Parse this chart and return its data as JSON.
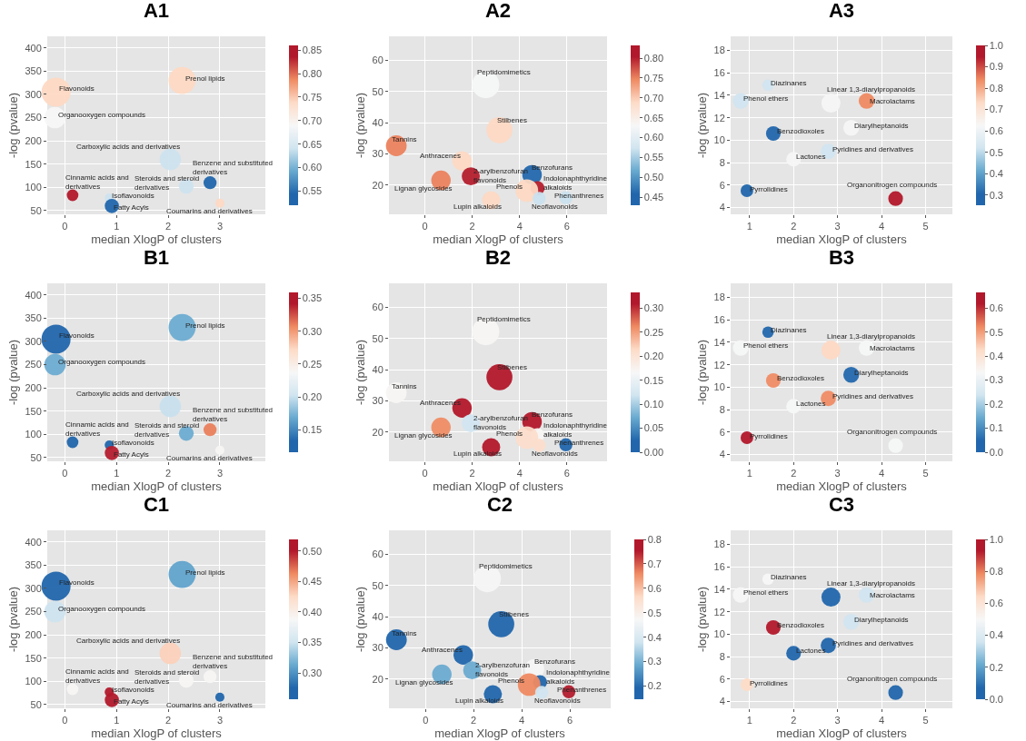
{
  "chart_data": [
    {
      "type": "bubble",
      "title": "A1",
      "xlabel": "median XlogP of clusters",
      "ylabel": "-log (pvalue)",
      "xlim": [
        -0.34,
        3.88
      ],
      "xticks": [
        0,
        1,
        2,
        3
      ],
      "ylim": [
        42,
        425
      ],
      "yticks": [
        50,
        100,
        150,
        200,
        250,
        300,
        350,
        400
      ],
      "grid": true,
      "x": [
        -0.17,
        2.27,
        -0.19,
        2.04,
        2.81,
        2.35,
        0.15,
        0.86,
        0.91,
        3.0
      ],
      "values": [
        305,
        330,
        250,
        160,
        110,
        102,
        83,
        77,
        60,
        66
      ],
      "sizes": [
        1,
        0.87,
        0.54,
        0.54,
        0.2,
        0.26,
        0.16,
        0.1,
        0.24,
        0.1
      ],
      "cvalues": [
        0.74,
        0.74,
        0.69,
        0.64,
        0.54,
        0.64,
        0.84,
        0.64,
        0.54,
        0.74
      ],
      "clim": [
        0.52,
        0.86
      ],
      "cticks": [
        0.55,
        {
          "value": 0.6,
          "label": "0.60"
        },
        0.65,
        {
          "value": 0.7,
          "label": "0.70"
        },
        0.75,
        {
          "value": 0.8,
          "label": "0.80"
        },
        0.85
      ],
      "annotations": [
        {
          "text": "Flavonoids",
          "x": -0.17,
          "y": 305
        },
        {
          "text": "Prenol lipids",
          "x": 2.27,
          "y": 330
        },
        {
          "text": "Organooxygen compounds",
          "x": -0.19,
          "y": 250
        },
        {
          "text": "Carboxylic acids and derivatives",
          "x": 2.04,
          "y": 160
        },
        {
          "text": "Benzene and substituted\nderivatives",
          "x": 2.81,
          "y": 110
        },
        {
          "text": "Steroids and steroid\nderivatives",
          "x": 2.35,
          "y": 102
        },
        {
          "text": "Cinnamic acids and\nderivatives",
          "x": 0.15,
          "y": 83
        },
        {
          "text": "Isoflavonoids",
          "x": 0.86,
          "y": 77
        },
        {
          "text": "Fatty Acyls",
          "x": 0.91,
          "y": 60
        },
        {
          "text": "Coumarins and derivatives",
          "x": 3.0,
          "y": 66
        }
      ]
    },
    {
      "type": "bubble",
      "title": "A2",
      "xlabel": "median XlogP of clusters",
      "ylabel": "-log (pvalue)",
      "xlim": [
        -1.52,
        7.7
      ],
      "xticks": [
        0,
        2,
        4,
        6
      ],
      "ylim": [
        10.6,
        67.7
      ],
      "yticks": [
        20,
        30,
        40,
        50,
        60
      ],
      "grid": true,
      "x": [
        2.57,
        3.15,
        -1.21,
        1.57,
        0.68,
        1.94,
        2.8,
        4.53,
        4.76,
        4.31,
        4.83,
        5.96
      ],
      "values": [
        52.2,
        37.6,
        32.6,
        27.7,
        21.5,
        22.8,
        15.1,
        23.3,
        19.0,
        18.2,
        15.7,
        15.9
      ],
      "sizes": [
        1,
        0.91,
        0.58,
        0.51,
        0.51,
        0.44,
        0.44,
        0.51,
        0.27,
        0.69,
        0.23,
        0.23
      ],
      "cvalues": [
        0.63,
        0.69,
        0.75,
        0.69,
        0.75,
        0.8,
        0.69,
        0.46,
        0.8,
        0.69,
        0.57,
        0.57
      ],
      "clim": [
        0.43,
        0.832
      ],
      "cticks": [
        0.45,
        {
          "value": 0.5,
          "label": "0.50"
        },
        0.55,
        {
          "value": 0.6,
          "label": "0.60"
        },
        0.65,
        {
          "value": 0.7,
          "label": "0.70"
        },
        0.75,
        {
          "value": 0.8,
          "label": "0.80"
        }
      ],
      "annotations": [
        {
          "text": "Peptidomimetics",
          "x": 2.57,
          "y": 52.2
        },
        {
          "text": "Stilbenes",
          "x": 3.15,
          "y": 37.6
        },
        {
          "text": "Tannins",
          "x": -1.21,
          "y": 32.6
        },
        {
          "text": "Anthracenes",
          "x": 1.57,
          "y": 27.7
        },
        {
          "text": "Lignan glycosides",
          "x": 0.68,
          "y": 21.5
        },
        {
          "text": "2-arylbenzofuran\nflavonoids",
          "x": 1.94,
          "y": 22.8
        },
        {
          "text": "Lupin alkaloids",
          "x": 2.8,
          "y": 15.1
        },
        {
          "text": "Benzofurans",
          "x": 4.53,
          "y": 23.3
        },
        {
          "text": "Indolonaphthyridine\nalkaloids",
          "x": 4.76,
          "y": 19.0
        },
        {
          "text": "Phenols",
          "x": 4.31,
          "y": 18.2
        },
        {
          "text": "Neoflavonoids",
          "x": 4.83,
          "y": 15.7
        },
        {
          "text": "Phenanthrenes",
          "x": 5.96,
          "y": 15.9
        }
      ]
    },
    {
      "type": "bubble",
      "title": "A3",
      "xlabel": "median XlogP of clusters",
      "ylabel": "-log (pvalue)",
      "xlim": [
        0.57,
        5.61
      ],
      "xticks": [
        1,
        2,
        3,
        4,
        5
      ],
      "ylim": [
        3.4,
        19.25
      ],
      "yticks": [
        4,
        6,
        8,
        10,
        12,
        14,
        16,
        18
      ],
      "grid": true,
      "x": [
        1.42,
        0.8,
        2.85,
        3.66,
        3.31,
        1.54,
        2.79,
        2.0,
        0.94,
        4.32
      ],
      "values": [
        14.9,
        13.5,
        13.3,
        13.5,
        11.1,
        10.6,
        9.0,
        8.3,
        5.5,
        4.8
      ],
      "sizes": [
        0.36,
        0.69,
        1,
        0.69,
        0.69,
        0.59,
        0.64,
        0.59,
        0.44,
        0.59
      ],
      "cvalues": [
        0.52,
        0.52,
        0.63,
        0.84,
        0.63,
        0.3,
        0.52,
        0.63,
        0.3,
        0.95
      ],
      "clim": [
        0.252,
        1.0
      ],
      "cticks": [
        0.3,
        0.4,
        0.5,
        0.6,
        0.7,
        0.8,
        0.9,
        {
          "value": 1,
          "label": "1.0"
        }
      ],
      "annotations": [
        {
          "text": "Diazinanes",
          "x": 1.42,
          "y": 14.9
        },
        {
          "text": "Phenol ethers",
          "x": 0.8,
          "y": 13.5
        },
        {
          "text": "Linear 1,3-diarylpropanoids",
          "x": 2.85,
          "y": 13.3
        },
        {
          "text": "Macrolactams",
          "x": 3.66,
          "y": 13.5
        },
        {
          "text": "Diarylheptanoids",
          "x": 3.31,
          "y": 11.1
        },
        {
          "text": "Benzodioxoles",
          "x": 1.54,
          "y": 10.6
        },
        {
          "text": "Pyridines and derivatives",
          "x": 2.79,
          "y": 9.0
        },
        {
          "text": "Lactones",
          "x": 2.0,
          "y": 8.3
        },
        {
          "text": "Pyrrolidines",
          "x": 0.94,
          "y": 5.5
        },
        {
          "text": "Organonitrogen compounds",
          "x": 4.32,
          "y": 4.8
        }
      ]
    },
    {
      "type": "bubble",
      "title": "B1",
      "xlabel": "median XlogP of clusters",
      "ylabel": "-log (pvalue)",
      "xlim": [
        -0.34,
        3.88
      ],
      "xticks": [
        0,
        1,
        2,
        3
      ],
      "ylim": [
        42,
        425
      ],
      "yticks": [
        50,
        100,
        150,
        200,
        250,
        300,
        350,
        400
      ],
      "grid": true,
      "x": [
        -0.17,
        2.27,
        -0.19,
        2.04,
        2.81,
        2.35,
        0.15,
        0.86,
        0.91,
        3.0
      ],
      "values": [
        305,
        330,
        250,
        160,
        110,
        102,
        83,
        77,
        60,
        66
      ],
      "sizes": [
        1,
        0.87,
        0.54,
        0.54,
        0.2,
        0.26,
        0.16,
        0.1,
        0.24,
        0.1
      ],
      "cvalues": [
        0.13,
        0.17,
        0.17,
        0.2,
        0.31,
        0.17,
        0.13,
        0.13,
        0.34,
        0.24
      ],
      "clim": [
        0.116,
        0.359
      ],
      "cticks": [
        0.15,
        {
          "value": 0.2,
          "label": "0.20"
        },
        0.25,
        {
          "value": 0.3,
          "label": "0.30"
        },
        0.35
      ],
      "annotations": [
        {
          "text": "Flavonoids",
          "x": -0.17,
          "y": 305
        },
        {
          "text": "Prenol lipids",
          "x": 2.27,
          "y": 330
        },
        {
          "text": "Organooxygen compounds",
          "x": -0.19,
          "y": 250
        },
        {
          "text": "Carboxylic acids and derivatives",
          "x": 2.04,
          "y": 160
        },
        {
          "text": "Benzene and substituted\nderivatives",
          "x": 2.81,
          "y": 110
        },
        {
          "text": "Steroids and steroid\nderivatives",
          "x": 2.35,
          "y": 102
        },
        {
          "text": "Cinnamic acids and\nderivatives",
          "x": 0.15,
          "y": 83
        },
        {
          "text": "Isoflavonoids",
          "x": 0.86,
          "y": 77
        },
        {
          "text": "Fatty Acyls",
          "x": 0.91,
          "y": 60
        },
        {
          "text": "Coumarins and derivatives",
          "x": 3.0,
          "y": 66
        }
      ]
    },
    {
      "type": "bubble",
      "title": "B2",
      "xlabel": "median XlogP of clusters",
      "ylabel": "-log (pvalue)",
      "xlim": [
        -1.52,
        7.7
      ],
      "xticks": [
        0,
        2,
        4,
        6
      ],
      "ylim": [
        10.6,
        67.7
      ],
      "yticks": [
        20,
        30,
        40,
        50,
        60
      ],
      "grid": true,
      "x": [
        2.57,
        3.15,
        -1.21,
        1.57,
        0.68,
        1.94,
        2.8,
        4.53,
        4.76,
        4.31,
        4.83,
        5.96
      ],
      "values": [
        52.2,
        37.6,
        32.6,
        27.7,
        21.5,
        22.8,
        15.1,
        23.3,
        19.0,
        18.2,
        15.7,
        15.9
      ],
      "sizes": [
        1,
        0.91,
        0.58,
        0.51,
        0.51,
        0.44,
        0.44,
        0.51,
        0.27,
        0.69,
        0.23,
        0.23
      ],
      "cvalues": [
        0.17,
        0.31,
        0.17,
        0.31,
        0.26,
        0.12,
        0.31,
        0.31,
        0.17,
        0.21,
        0.21,
        0.02
      ],
      "clim": [
        0,
        0.333
      ],
      "cticks": [
        {
          "value": 0,
          "label": "0.00"
        },
        0.05,
        {
          "value": 0.1,
          "label": "0.10"
        },
        0.15,
        {
          "value": 0.2,
          "label": "0.20"
        },
        0.25,
        {
          "value": 0.3,
          "label": "0.30"
        }
      ],
      "annotations": [
        {
          "text": "Peptidomimetics",
          "x": 2.57,
          "y": 52.2
        },
        {
          "text": "Stilbenes",
          "x": 3.15,
          "y": 37.6
        },
        {
          "text": "Tannins",
          "x": -1.21,
          "y": 32.6
        },
        {
          "text": "Anthracenes",
          "x": 1.57,
          "y": 27.7
        },
        {
          "text": "Lignan glycosides",
          "x": 0.68,
          "y": 21.5
        },
        {
          "text": "2-arylbenzofuran\nflavonoids",
          "x": 1.94,
          "y": 22.8
        },
        {
          "text": "Lupin alkaloids",
          "x": 2.8,
          "y": 15.1
        },
        {
          "text": "Benzofurans",
          "x": 4.53,
          "y": 23.3
        },
        {
          "text": "Indolonaphthyridine\nalkaloids",
          "x": 4.76,
          "y": 19.0
        },
        {
          "text": "Phenols",
          "x": 4.31,
          "y": 18.2
        },
        {
          "text": "Neoflavonoids",
          "x": 4.83,
          "y": 15.7
        },
        {
          "text": "Phenanthrenes",
          "x": 5.96,
          "y": 15.9
        }
      ]
    },
    {
      "type": "bubble",
      "title": "B3",
      "xlabel": "median XlogP of clusters",
      "ylabel": "-log (pvalue)",
      "xlim": [
        0.57,
        5.61
      ],
      "xticks": [
        1,
        2,
        3,
        4,
        5
      ],
      "ylim": [
        3.4,
        19.25
      ],
      "yticks": [
        4,
        6,
        8,
        10,
        12,
        14,
        16,
        18
      ],
      "grid": true,
      "x": [
        1.42,
        0.8,
        2.85,
        3.66,
        3.31,
        1.54,
        2.79,
        2.0,
        0.94,
        4.32
      ],
      "values": [
        14.9,
        13.5,
        13.3,
        13.5,
        11.1,
        10.6,
        9.0,
        8.3,
        5.5,
        4.8
      ],
      "sizes": [
        0.36,
        0.69,
        1,
        0.69,
        0.69,
        0.59,
        0.64,
        0.59,
        0.44,
        0.59
      ],
      "cvalues": [
        0.05,
        0.33,
        0.43,
        0.33,
        0.05,
        0.52,
        0.52,
        0.33,
        0.62,
        0.33
      ],
      "clim": [
        0,
        0.665
      ],
      "cticks": [
        {
          "value": 0,
          "label": "0.0"
        },
        0.1,
        0.2,
        0.3,
        0.4,
        0.5,
        0.6
      ],
      "annotations": [
        {
          "text": "Diazinanes",
          "x": 1.42,
          "y": 14.9
        },
        {
          "text": "Phenol ethers",
          "x": 0.8,
          "y": 13.5
        },
        {
          "text": "Linear 1,3-diarylpropanoids",
          "x": 2.85,
          "y": 13.3
        },
        {
          "text": "Macrolactams",
          "x": 3.66,
          "y": 13.5
        },
        {
          "text": "Diarylheptanoids",
          "x": 3.31,
          "y": 11.1
        },
        {
          "text": "Benzodioxoles",
          "x": 1.54,
          "y": 10.6
        },
        {
          "text": "Pyridines and derivatives",
          "x": 2.79,
          "y": 9.0
        },
        {
          "text": "Lactones",
          "x": 2.0,
          "y": 8.3
        },
        {
          "text": "Pyrrolidines",
          "x": 0.94,
          "y": 5.5
        },
        {
          "text": "Organonitrogen compounds",
          "x": 4.32,
          "y": 4.8
        }
      ]
    },
    {
      "type": "bubble",
      "title": "C1",
      "xlabel": "median XlogP of clusters",
      "ylabel": "-log (pvalue)",
      "xlim": [
        -0.34,
        3.88
      ],
      "xticks": [
        0,
        1,
        2,
        3
      ],
      "ylim": [
        42,
        425
      ],
      "yticks": [
        50,
        100,
        150,
        200,
        250,
        300,
        350,
        400
      ],
      "grid": true,
      "x": [
        -0.17,
        2.27,
        -0.19,
        2.04,
        2.81,
        2.35,
        0.15,
        0.86,
        0.91,
        3.0
      ],
      "values": [
        305,
        330,
        250,
        160,
        110,
        102,
        83,
        77,
        60,
        66
      ],
      "sizes": [
        1,
        0.87,
        0.54,
        0.54,
        0.2,
        0.26,
        0.16,
        0.1,
        0.24,
        0.1
      ],
      "cvalues": [
        0.27,
        0.31,
        0.35,
        0.43,
        0.39,
        0.39,
        0.39,
        0.5,
        0.5,
        0.27
      ],
      "clim": [
        0.257,
        0.519
      ],
      "cticks": [
        {
          "value": 0.3,
          "label": "0.30"
        },
        0.35,
        {
          "value": 0.4,
          "label": "0.40"
        },
        0.45,
        {
          "value": 0.5,
          "label": "0.50"
        }
      ],
      "annotations": [
        {
          "text": "Flavonoids",
          "x": -0.17,
          "y": 305
        },
        {
          "text": "Prenol lipids",
          "x": 2.27,
          "y": 330
        },
        {
          "text": "Organooxygen compounds",
          "x": -0.19,
          "y": 250
        },
        {
          "text": "Carboxylic acids and derivatives",
          "x": 2.04,
          "y": 160
        },
        {
          "text": "Benzene and substituted\nderivatives",
          "x": 2.81,
          "y": 110
        },
        {
          "text": "Steroids and steroid\nderivatives",
          "x": 2.35,
          "y": 102
        },
        {
          "text": "Cinnamic acids and\nderivatives",
          "x": 0.15,
          "y": 83
        },
        {
          "text": "Isoflavonoids",
          "x": 0.86,
          "y": 77
        },
        {
          "text": "Fatty Acyls",
          "x": 0.91,
          "y": 60
        },
        {
          "text": "Coumarins and derivatives",
          "x": 3.0,
          "y": 66
        }
      ]
    },
    {
      "type": "bubble",
      "title": "C2",
      "xlabel": "median XlogP of clusters",
      "ylabel": "-log (pvalue)",
      "xlim": [
        -1.52,
        7.7
      ],
      "xticks": [
        0,
        2,
        4,
        6
      ],
      "ylim": [
        10.6,
        67.7
      ],
      "yticks": [
        20,
        30,
        40,
        50,
        60
      ],
      "grid": true,
      "x": [
        2.57,
        3.15,
        -1.21,
        1.57,
        0.68,
        1.94,
        2.8,
        4.53,
        4.76,
        4.31,
        4.83,
        5.96
      ],
      "values": [
        52.2,
        37.6,
        32.6,
        27.7,
        21.5,
        22.8,
        15.1,
        23.3,
        19.0,
        18.2,
        15.7,
        15.9
      ],
      "sizes": [
        1,
        0.91,
        0.58,
        0.51,
        0.51,
        0.44,
        0.44,
        0.51,
        0.27,
        0.69,
        0.23,
        0.23
      ],
      "cvalues": [
        0.47,
        0.19,
        0.19,
        0.19,
        0.29,
        0.29,
        0.19,
        0.47,
        0.19,
        0.66,
        0.38,
        0.75
      ],
      "clim": [
        0.146,
        0.8
      ],
      "cticks": [
        0.2,
        0.3,
        0.4,
        0.5,
        0.6,
        0.7,
        0.8
      ],
      "annotations": [
        {
          "text": "Peptidomimetics",
          "x": 2.57,
          "y": 52.2
        },
        {
          "text": "Stilbenes",
          "x": 3.15,
          "y": 37.6
        },
        {
          "text": "Tannins",
          "x": -1.21,
          "y": 32.6
        },
        {
          "text": "Anthracenes",
          "x": 1.57,
          "y": 27.7
        },
        {
          "text": "Lignan glycosides",
          "x": 0.68,
          "y": 21.5
        },
        {
          "text": "2-arylbenzofuran\nflavonoids",
          "x": 1.94,
          "y": 22.8
        },
        {
          "text": "Lupin alkaloids",
          "x": 2.8,
          "y": 15.1
        },
        {
          "text": "Benzofurans",
          "x": 4.53,
          "y": 23.3
        },
        {
          "text": "Indolonaphthyridine\nalkaloids",
          "x": 4.76,
          "y": 19.0
        },
        {
          "text": "Phenols",
          "x": 4.31,
          "y": 18.2
        },
        {
          "text": "Neoflavonoids",
          "x": 4.83,
          "y": 15.7
        },
        {
          "text": "Phenanthrenes",
          "x": 5.96,
          "y": 15.9
        }
      ]
    },
    {
      "type": "bubble",
      "title": "C3",
      "xlabel": "median XlogP of clusters",
      "ylabel": "-log (pvalue)",
      "xlim": [
        0.57,
        5.61
      ],
      "xticks": [
        1,
        2,
        3,
        4,
        5
      ],
      "ylim": [
        3.4,
        19.25
      ],
      "yticks": [
        4,
        6,
        8,
        10,
        12,
        14,
        16,
        18
      ],
      "grid": true,
      "x": [
        1.42,
        0.8,
        2.85,
        3.66,
        3.31,
        1.54,
        2.79,
        2.0,
        0.94,
        4.32
      ],
      "values": [
        14.9,
        13.5,
        13.3,
        13.5,
        11.1,
        10.6,
        9.0,
        8.3,
        5.5,
        4.8
      ],
      "sizes": [
        0.36,
        0.69,
        1,
        0.69,
        0.69,
        0.59,
        0.64,
        0.59,
        0.44,
        0.59
      ],
      "cvalues": [
        0.5,
        0.5,
        0.07,
        0.36,
        0.36,
        0.93,
        0.07,
        0.07,
        0.64,
        0.07
      ],
      "clim": [
        0,
        1.0
      ],
      "cticks": [
        {
          "value": 0,
          "label": "0.0"
        },
        0.2,
        0.4,
        0.6,
        0.8,
        {
          "value": 1,
          "label": "1.0"
        }
      ],
      "annotations": [
        {
          "text": "Diazinanes",
          "x": 1.42,
          "y": 14.9
        },
        {
          "text": "Phenol ethers",
          "x": 0.8,
          "y": 13.5
        },
        {
          "text": "Linear 1,3-diarylpropanoids",
          "x": 2.85,
          "y": 13.3
        },
        {
          "text": "Macrolactams",
          "x": 3.66,
          "y": 13.5
        },
        {
          "text": "Diarylheptanoids",
          "x": 3.31,
          "y": 11.1
        },
        {
          "text": "Benzodioxoles",
          "x": 1.54,
          "y": 10.6
        },
        {
          "text": "Pyridines and derivatives",
          "x": 2.79,
          "y": 9.0
        },
        {
          "text": "Lactones",
          "x": 2.0,
          "y": 8.3
        },
        {
          "text": "Pyrrolidines",
          "x": 0.94,
          "y": 5.5
        },
        {
          "text": "Organonitrogen compounds",
          "x": 4.32,
          "y": 4.8
        }
      ]
    }
  ]
}
